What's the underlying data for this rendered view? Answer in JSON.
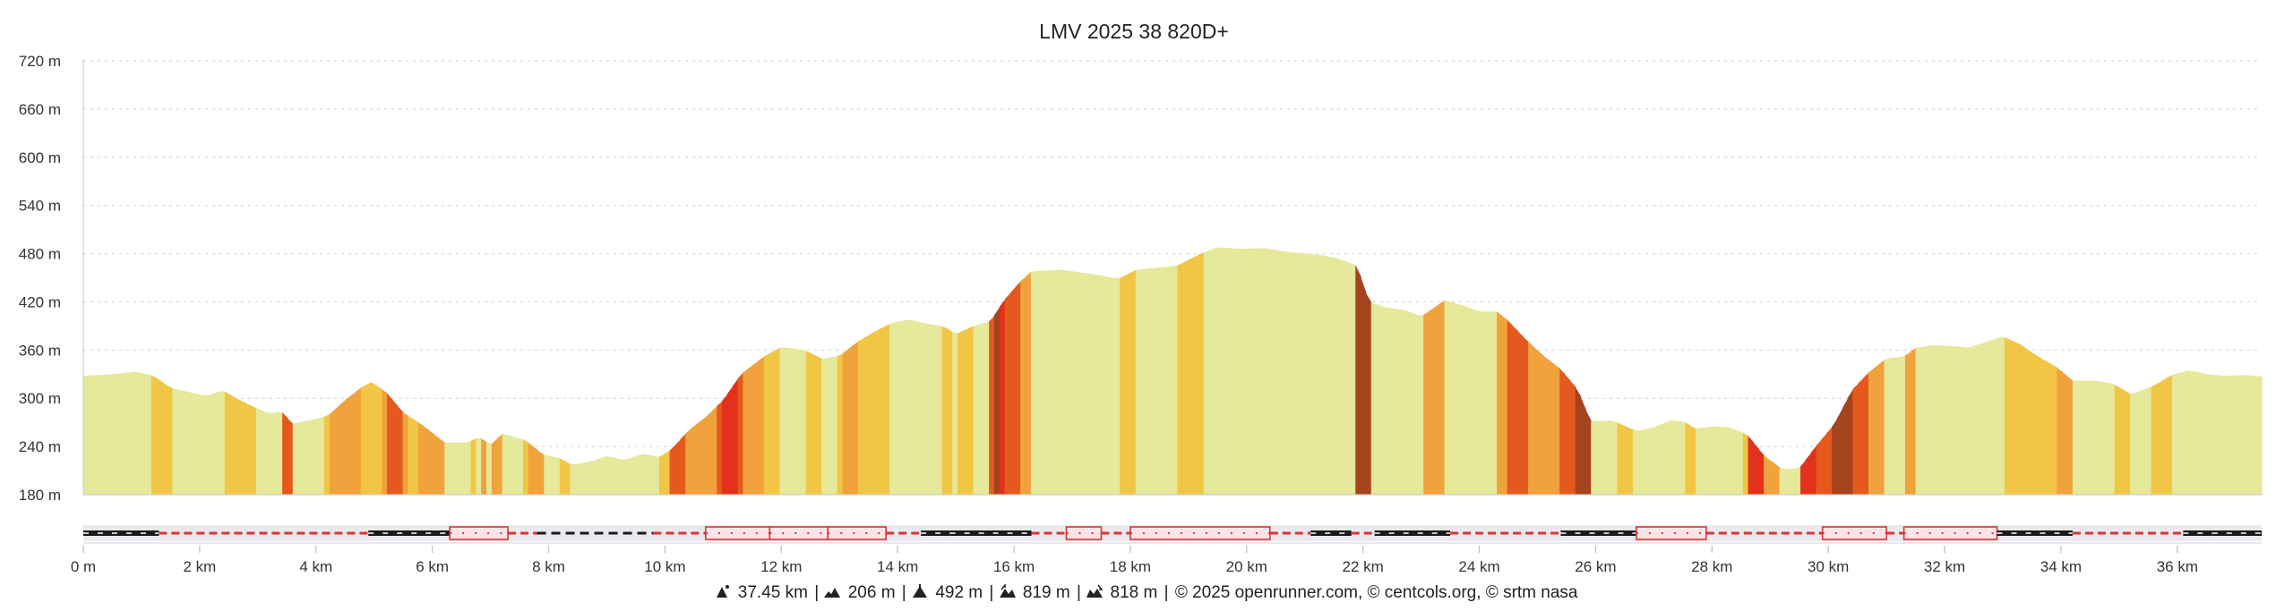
{
  "chart_data": {
    "type": "area",
    "title": "LMV 2025 38 820D+",
    "xlabel": "",
    "ylabel": "",
    "x_unit": "km",
    "y_unit": "m",
    "xlim": [
      0,
      37.45
    ],
    "ylim": [
      180,
      720
    ],
    "y_ticks": [
      180,
      240,
      300,
      360,
      420,
      480,
      540,
      600,
      660,
      720
    ],
    "y_tick_labels": [
      "180 m",
      "240 m",
      "300 m",
      "360 m",
      "420 m",
      "480 m",
      "540 m",
      "600 m",
      "660 m",
      "720 m"
    ],
    "x_ticks": [
      0,
      2,
      4,
      6,
      8,
      10,
      12,
      14,
      16,
      18,
      20,
      22,
      24,
      26,
      28,
      30,
      32,
      34,
      36
    ],
    "x_tick_labels": [
      "0 m",
      "2 km",
      "4 km",
      "6 km",
      "8 km",
      "10 km",
      "12 km",
      "14 km",
      "16 km",
      "18 km",
      "20 km",
      "22 km",
      "24 km",
      "26 km",
      "28 km",
      "30 km",
      "32 km",
      "34 km",
      "36 km"
    ],
    "grid": true,
    "legend": "none",
    "x": [
      0,
      0.5,
      0.9,
      1.2,
      1.5,
      1.8,
      2.1,
      2.4,
      2.6,
      2.9,
      3.2,
      3.4,
      3.6,
      3.9,
      4.2,
      4.5,
      4.8,
      4.95,
      5.2,
      5.5,
      5.8,
      6.0,
      6.2,
      6.6,
      6.8,
      7.0,
      7.2,
      7.6,
      7.9,
      8.2,
      8.4,
      8.7,
      9.0,
      9.3,
      9.6,
      9.9,
      10.1,
      10.4,
      10.7,
      11.0,
      11.3,
      11.7,
      12.0,
      12.4,
      12.7,
      13.0,
      13.3,
      13.6,
      13.9,
      14.2,
      14.5,
      14.8,
      15.0,
      15.3,
      15.6,
      15.8,
      16.1,
      16.3,
      16.8,
      17.3,
      17.8,
      18.1,
      18.5,
      18.8,
      19.2,
      19.5,
      19.9,
      20.3,
      20.7,
      21.0,
      21.3,
      21.6,
      21.9,
      22.1,
      22.4,
      22.7,
      23.0,
      23.4,
      23.7,
      24.0,
      24.3,
      24.5,
      24.8,
      25.1,
      25.4,
      25.7,
      25.9,
      26.3,
      26.7,
      27.0,
      27.3,
      27.55,
      27.7,
      28.0,
      28.3,
      28.6,
      28.9,
      29.2,
      29.5,
      29.8,
      30.1,
      30.4,
      30.7,
      31.0,
      31.3,
      31.5,
      31.8,
      32.1,
      32.4,
      32.7,
      33.0,
      33.3,
      33.6,
      33.9,
      34.2,
      34.6,
      34.9,
      35.2,
      35.6,
      35.9,
      36.2,
      36.5,
      36.8,
      37.2,
      37.45
    ],
    "y": [
      328,
      330,
      333,
      328,
      313,
      308,
      303,
      310,
      301,
      290,
      281,
      284,
      268,
      273,
      278,
      298,
      315,
      320,
      308,
      282,
      268,
      257,
      245,
      245,
      252,
      242,
      256,
      248,
      230,
      225,
      217,
      221,
      228,
      223,
      231,
      227,
      236,
      260,
      277,
      298,
      330,
      352,
      364,
      360,
      349,
      353,
      370,
      383,
      394,
      398,
      393,
      389,
      380,
      390,
      396,
      420,
      445,
      458,
      460,
      455,
      449,
      460,
      463,
      465,
      480,
      488,
      486,
      487,
      482,
      480,
      478,
      473,
      465,
      420,
      413,
      410,
      402,
      422,
      416,
      408,
      408,
      396,
      373,
      353,
      336,
      310,
      272,
      272,
      259,
      264,
      273,
      270,
      262,
      265,
      264,
      255,
      228,
      212,
      213,
      242,
      268,
      310,
      333,
      350,
      352,
      363,
      366,
      365,
      363,
      370,
      377,
      367,
      352,
      340,
      322,
      322,
      318,
      305,
      316,
      329,
      335,
      330,
      328,
      329,
      327
    ]
  },
  "footer": {
    "distance": "37.45 km",
    "elev_min": "206 m",
    "elev_max": "492 m",
    "ascent": "819 m",
    "descent": "818 m",
    "copyright": "© 2025 openrunner.com, © centcols.org, © srtm nasa"
  },
  "colors": {
    "flat": "#e6e89a",
    "gentle": "#f1c645",
    "moderate": "#f0a23c",
    "steep": "#e5591f",
    "very_steep": "#e2321b",
    "extreme": "#a5441e",
    "grid": "#d7d7d7",
    "road_black": "#1a1a1a",
    "road_red": "#d8333a"
  }
}
